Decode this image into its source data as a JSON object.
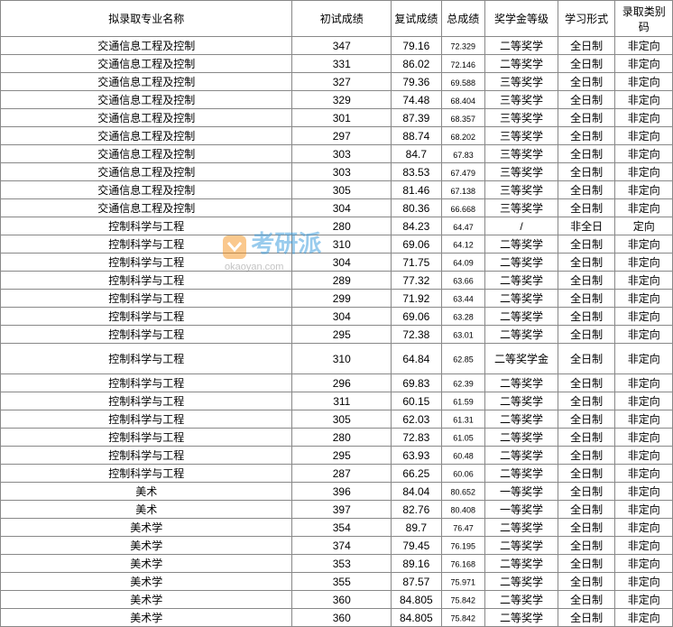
{
  "headers": {
    "major": "拟录取专业名称",
    "init": "初试成绩",
    "retest": "复试成绩",
    "total": "总成绩",
    "scholar": "奖学金等级",
    "study": "学习形式",
    "admit": "录取类别码"
  },
  "watermark": {
    "text": "考研派",
    "url": "okaoyan.com"
  },
  "rows": [
    {
      "major": "交通信息工程及控制",
      "init": "347",
      "retest": "79.16",
      "total": "72.329",
      "scholar": "二等奖学",
      "study": "全日制",
      "admit": "非定向"
    },
    {
      "major": "交通信息工程及控制",
      "init": "331",
      "retest": "86.02",
      "total": "72.146",
      "scholar": "二等奖学",
      "study": "全日制",
      "admit": "非定向"
    },
    {
      "major": "交通信息工程及控制",
      "init": "327",
      "retest": "79.36",
      "total": "69.588",
      "scholar": "三等奖学",
      "study": "全日制",
      "admit": "非定向"
    },
    {
      "major": "交通信息工程及控制",
      "init": "329",
      "retest": "74.48",
      "total": "68.404",
      "scholar": "三等奖学",
      "study": "全日制",
      "admit": "非定向"
    },
    {
      "major": "交通信息工程及控制",
      "init": "301",
      "retest": "87.39",
      "total": "68.357",
      "scholar": "三等奖学",
      "study": "全日制",
      "admit": "非定向"
    },
    {
      "major": "交通信息工程及控制",
      "init": "297",
      "retest": "88.74",
      "total": "68.202",
      "scholar": "三等奖学",
      "study": "全日制",
      "admit": "非定向"
    },
    {
      "major": "交通信息工程及控制",
      "init": "303",
      "retest": "84.7",
      "total": "67.83",
      "scholar": "三等奖学",
      "study": "全日制",
      "admit": "非定向"
    },
    {
      "major": "交通信息工程及控制",
      "init": "303",
      "retest": "83.53",
      "total": "67.479",
      "scholar": "三等奖学",
      "study": "全日制",
      "admit": "非定向"
    },
    {
      "major": "交通信息工程及控制",
      "init": "305",
      "retest": "81.46",
      "total": "67.138",
      "scholar": "三等奖学",
      "study": "全日制",
      "admit": "非定向"
    },
    {
      "major": "交通信息工程及控制",
      "init": "304",
      "retest": "80.36",
      "total": "66.668",
      "scholar": "三等奖学",
      "study": "全日制",
      "admit": "非定向"
    },
    {
      "major": "控制科学与工程",
      "init": "280",
      "retest": "84.23",
      "total": "64.47",
      "scholar": "/",
      "study": "非全日",
      "admit": "定向"
    },
    {
      "major": "控制科学与工程",
      "init": "310",
      "retest": "69.06",
      "total": "64.12",
      "scholar": "二等奖学",
      "study": "全日制",
      "admit": "非定向"
    },
    {
      "major": "控制科学与工程",
      "init": "304",
      "retest": "71.75",
      "total": "64.09",
      "scholar": "二等奖学",
      "study": "全日制",
      "admit": "非定向"
    },
    {
      "major": "控制科学与工程",
      "init": "289",
      "retest": "77.32",
      "total": "63.66",
      "scholar": "二等奖学",
      "study": "全日制",
      "admit": "非定向"
    },
    {
      "major": "控制科学与工程",
      "init": "299",
      "retest": "71.92",
      "total": "63.44",
      "scholar": "二等奖学",
      "study": "全日制",
      "admit": "非定向"
    },
    {
      "major": "控制科学与工程",
      "init": "304",
      "retest": "69.06",
      "total": "63.28",
      "scholar": "二等奖学",
      "study": "全日制",
      "admit": "非定向"
    },
    {
      "major": "控制科学与工程",
      "init": "295",
      "retest": "72.38",
      "total": "63.01",
      "scholar": "二等奖学",
      "study": "全日制",
      "admit": "非定向"
    },
    {
      "major": "控制科学与工程",
      "init": "310",
      "retest": "64.84",
      "total": "62.85",
      "scholar": "二等奖学金",
      "study": "全日制",
      "admit": "非定向",
      "tall": true
    },
    {
      "major": "控制科学与工程",
      "init": "296",
      "retest": "69.83",
      "total": "62.39",
      "scholar": "二等奖学",
      "study": "全日制",
      "admit": "非定向"
    },
    {
      "major": "控制科学与工程",
      "init": "311",
      "retest": "60.15",
      "total": "61.59",
      "scholar": "二等奖学",
      "study": "全日制",
      "admit": "非定向"
    },
    {
      "major": "控制科学与工程",
      "init": "305",
      "retest": "62.03",
      "total": "61.31",
      "scholar": "二等奖学",
      "study": "全日制",
      "admit": "非定向"
    },
    {
      "major": "控制科学与工程",
      "init": "280",
      "retest": "72.83",
      "total": "61.05",
      "scholar": "二等奖学",
      "study": "全日制",
      "admit": "非定向"
    },
    {
      "major": "控制科学与工程",
      "init": "295",
      "retest": "63.93",
      "total": "60.48",
      "scholar": "二等奖学",
      "study": "全日制",
      "admit": "非定向"
    },
    {
      "major": "控制科学与工程",
      "init": "287",
      "retest": "66.25",
      "total": "60.06",
      "scholar": "二等奖学",
      "study": "全日制",
      "admit": "非定向"
    },
    {
      "major": "美术",
      "init": "396",
      "retest": "84.04",
      "total": "80.652",
      "scholar": "一等奖学",
      "study": "全日制",
      "admit": "非定向"
    },
    {
      "major": "美术",
      "init": "397",
      "retest": "82.76",
      "total": "80.408",
      "scholar": "一等奖学",
      "study": "全日制",
      "admit": "非定向"
    },
    {
      "major": "美术学",
      "init": "354",
      "retest": "89.7",
      "total": "76.47",
      "scholar": "二等奖学",
      "study": "全日制",
      "admit": "非定向"
    },
    {
      "major": "美术学",
      "init": "374",
      "retest": "79.45",
      "total": "76.195",
      "scholar": "二等奖学",
      "study": "全日制",
      "admit": "非定向"
    },
    {
      "major": "美术学",
      "init": "353",
      "retest": "89.16",
      "total": "76.168",
      "scholar": "二等奖学",
      "study": "全日制",
      "admit": "非定向"
    },
    {
      "major": "美术学",
      "init": "355",
      "retest": "87.57",
      "total": "75.971",
      "scholar": "二等奖学",
      "study": "全日制",
      "admit": "非定向"
    },
    {
      "major": "美术学",
      "init": "360",
      "retest": "84.805",
      "total": "75.842",
      "scholar": "二等奖学",
      "study": "全日制",
      "admit": "非定向"
    },
    {
      "major": "美术学",
      "init": "360",
      "retest": "84.805",
      "total": "75.842",
      "scholar": "二等奖学",
      "study": "全日制",
      "admit": "非定向"
    }
  ]
}
